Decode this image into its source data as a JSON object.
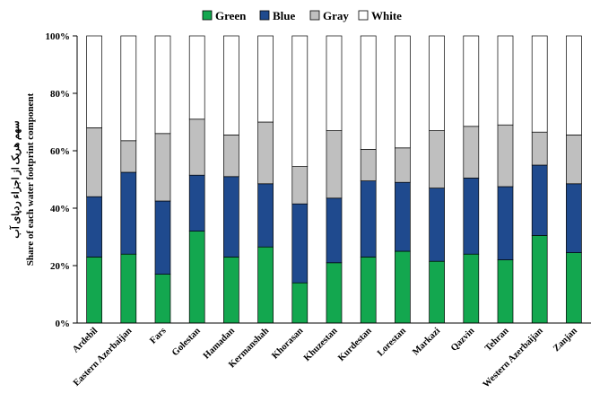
{
  "chart_data": {
    "type": "bar",
    "stacked": true,
    "categories": [
      "Ardebil",
      "Eastern Azerbaijan",
      "Fars",
      "Golestan",
      "Hamadan",
      "Kermanshah",
      "Khorasan",
      "Khuzestan",
      "Kurdestan",
      "Lorestan",
      "Markazi",
      "Qazvin",
      "Tehran",
      "Western Azerbaijan",
      "Zanjan"
    ],
    "series": [
      {
        "name": "Green",
        "color": "#13a74f",
        "values": [
          23,
          24,
          17,
          32,
          23,
          26.5,
          14,
          21,
          23,
          25,
          21.5,
          24,
          22,
          30.5,
          24.5
        ]
      },
      {
        "name": "Blue",
        "color": "#1f4a8e",
        "values": [
          21,
          28.5,
          25.5,
          19.5,
          28,
          22,
          27.5,
          22.5,
          26.5,
          24,
          25.5,
          26.5,
          25.5,
          24.5,
          24
        ]
      },
      {
        "name": "Gray",
        "color": "#bfbfbf",
        "values": [
          24,
          11,
          23.5,
          19.5,
          14.5,
          21.5,
          13,
          23.5,
          11,
          12,
          20,
          18,
          21.5,
          11.5,
          17
        ]
      },
      {
        "name": "White",
        "color": "#ffffff",
        "values": [
          32,
          36.5,
          34,
          29,
          34.5,
          30,
          45.5,
          33,
          39.5,
          39,
          33,
          31.5,
          31,
          33.5,
          34.5
        ]
      }
    ],
    "yticks": [
      "0%",
      "20%",
      "40%",
      "60%",
      "80%",
      "100%"
    ],
    "ylim": [
      0,
      100
    ],
    "ylabel_line1": "سهم هریک از اجزاء ردپای آب",
    "ylabel_line2": "Share of each water footprint component",
    "xlabel": "",
    "legend_position": "top",
    "grid": false
  }
}
